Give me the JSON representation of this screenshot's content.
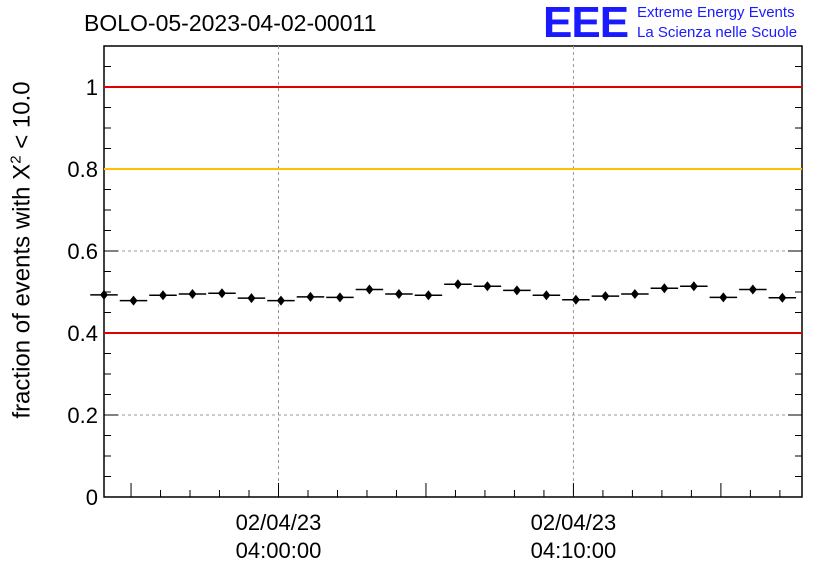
{
  "header": {
    "run_id": "BOLO-05-2023-04-02-00011"
  },
  "logo": {
    "mark": "EEE",
    "line1": "Extreme Energy Events",
    "line2": "La Scienza nelle Scuole",
    "color": "#1a1aff"
  },
  "chart_data": {
    "type": "scatter",
    "ylabel_prefix": "fraction of events with ",
    "ylabel_symbol": "X",
    "ylabel_exp": "2",
    "ylabel_suffix": " < 10.0",
    "ylim": [
      0,
      1.1
    ],
    "yticks": [
      0,
      0.2,
      0.4,
      0.6,
      0.8,
      1
    ],
    "ytick_labels": [
      "0",
      "0.2",
      "0.4",
      "0.6",
      "0.8",
      "1"
    ],
    "x_tick_labels": [
      {
        "date": "02/04/23",
        "time": "04:00:00"
      },
      {
        "date": "02/04/23",
        "time": "04:10:00"
      }
    ],
    "grid": true,
    "reference_lines": [
      {
        "y": 1.0,
        "color": "#e00000"
      },
      {
        "y": 0.8,
        "color": "#ffc000"
      },
      {
        "y": 0.4,
        "color": "#e00000"
      }
    ],
    "x_start": "03:54:05",
    "x_end": "04:17:45",
    "bin_minutes": 1,
    "series": [
      {
        "x": [
          "03:54:05",
          "03:55:05",
          "03:56:05",
          "03:57:05",
          "03:58:05",
          "03:59:05",
          "04:00:05",
          "04:01:05",
          "04:02:05",
          "04:03:05",
          "04:04:05",
          "04:05:05",
          "04:06:05",
          "04:07:05",
          "04:08:05",
          "04:09:05",
          "04:10:05",
          "04:11:05",
          "04:12:05",
          "04:13:05",
          "04:14:05",
          "04:15:05",
          "04:16:05",
          "04:17:05"
        ],
        "values": [
          0.493,
          0.479,
          0.492,
          0.495,
          0.497,
          0.485,
          0.479,
          0.488,
          0.487,
          0.506,
          0.495,
          0.492,
          0.519,
          0.514,
          0.504,
          0.492,
          0.481,
          0.49,
          0.495,
          0.509,
          0.514,
          0.487,
          0.506,
          0.486
        ],
        "color": "#000000"
      }
    ]
  }
}
